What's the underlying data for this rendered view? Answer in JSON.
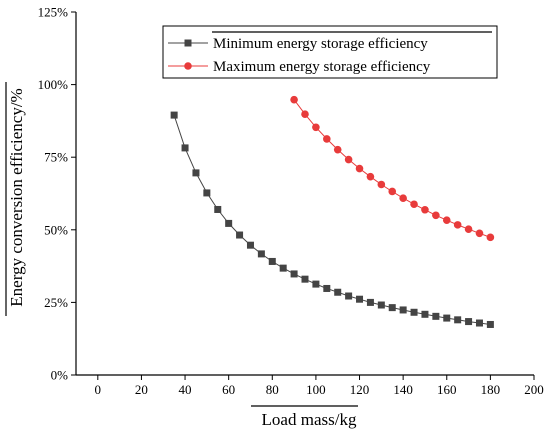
{
  "chart_data": {
    "type": "line",
    "title": "",
    "xlabel": "Load mass/kg",
    "ylabel": "Energy conversion efficiency/%",
    "xlim": [
      -10,
      200
    ],
    "ylim": [
      0,
      125
    ],
    "xticks": [
      0,
      20,
      40,
      60,
      80,
      100,
      120,
      140,
      160,
      180,
      200
    ],
    "yticks": [
      0,
      25,
      50,
      75,
      100,
      125
    ],
    "ytick_suffix": "%",
    "grid": false,
    "legend_position": "top-right",
    "series": [
      {
        "name": "Minimum energy storage efficiency",
        "color": "#444444",
        "marker": "square",
        "x": [
          35,
          40,
          45,
          50,
          55,
          60,
          65,
          70,
          75,
          80,
          85,
          90,
          95,
          100,
          105,
          110,
          115,
          120,
          125,
          130,
          135,
          140,
          145,
          150,
          155,
          160,
          165,
          170,
          175,
          180
        ],
        "y": [
          89.5,
          78.2,
          69.6,
          62.7,
          57.0,
          52.2,
          48.2,
          44.7,
          41.7,
          39.1,
          36.8,
          34.8,
          33.0,
          31.3,
          29.8,
          28.5,
          27.2,
          26.1,
          25.0,
          24.1,
          23.2,
          22.4,
          21.6,
          20.9,
          20.2,
          19.6,
          19.0,
          18.4,
          17.9,
          17.4
        ]
      },
      {
        "name": "Maximum energy storage efficiency",
        "color": "#e83b3b",
        "marker": "circle",
        "x": [
          90,
          95,
          100,
          105,
          110,
          115,
          120,
          125,
          130,
          135,
          140,
          145,
          150,
          155,
          160,
          165,
          170,
          175,
          180
        ],
        "y": [
          94.8,
          89.8,
          85.3,
          81.3,
          77.6,
          74.2,
          71.1,
          68.3,
          65.6,
          63.2,
          60.9,
          58.8,
          56.9,
          55.0,
          53.3,
          51.7,
          50.2,
          48.8,
          47.4
        ]
      }
    ]
  }
}
